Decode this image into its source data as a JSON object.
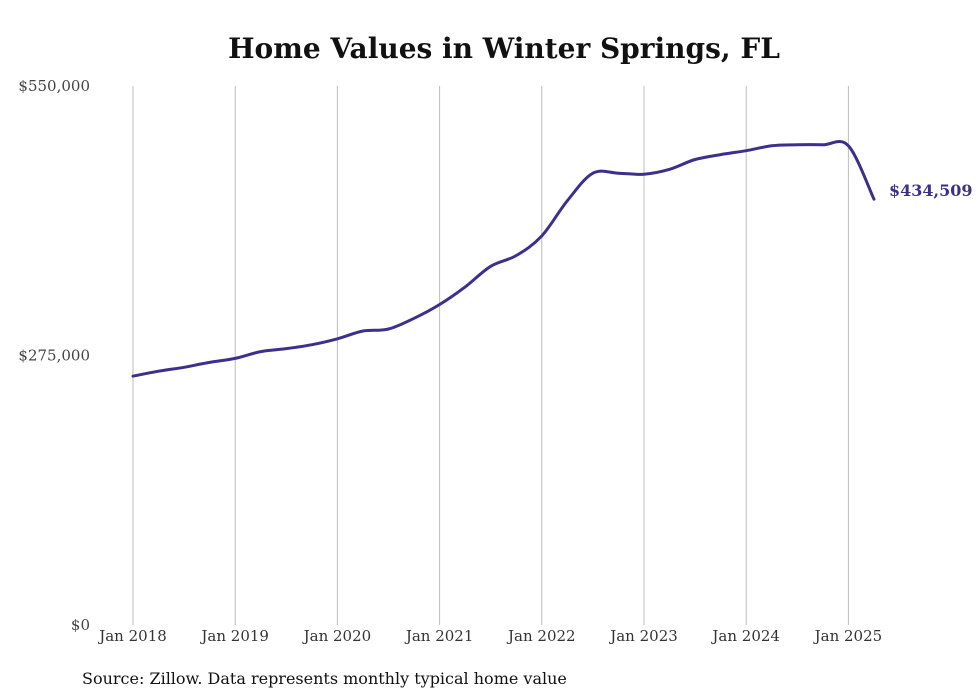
{
  "chart_data": {
    "type": "line",
    "title": "Home Values in Winter Springs, FL",
    "xlabel": "",
    "ylabel": "",
    "ylim": [
      0,
      550000
    ],
    "y_ticks": [
      0,
      275000,
      550000
    ],
    "y_tick_labels": [
      "$0",
      "$275,000",
      "$550,000"
    ],
    "x_ticks": [
      "2018-01",
      "2019-01",
      "2020-01",
      "2021-01",
      "2022-01",
      "2023-01",
      "2024-01",
      "2025-01"
    ],
    "x_tick_labels": [
      "Jan 2018",
      "Jan 2019",
      "Jan 2020",
      "Jan 2021",
      "Jan 2022",
      "Jan 2023",
      "Jan 2024",
      "Jan 2025"
    ],
    "grid": "vertical",
    "line_color": "#3d2f8c",
    "end_label": "$434,509",
    "series": [
      {
        "x": [
          "2018-01",
          "2018-04",
          "2018-07",
          "2018-10",
          "2019-01",
          "2019-04",
          "2019-07",
          "2019-10",
          "2020-01",
          "2020-04",
          "2020-07",
          "2020-10",
          "2021-01",
          "2021-04",
          "2021-07",
          "2021-10",
          "2022-01",
          "2022-04",
          "2022-07",
          "2022-10",
          "2023-01",
          "2023-04",
          "2023-07",
          "2023-10",
          "2024-01",
          "2024-04",
          "2024-07",
          "2024-10",
          "2025-01",
          "2025-04"
        ],
        "values": [
          254000,
          259000,
          263000,
          268000,
          272000,
          279000,
          282000,
          286000,
          292000,
          300000,
          302000,
          313000,
          327000,
          345000,
          366000,
          377000,
          397000,
          433000,
          461000,
          461000,
          460000,
          465000,
          475000,
          480000,
          484000,
          489000,
          490000,
          490000,
          489000,
          434509
        ]
      }
    ]
  },
  "source_note": "Source: Zillow. Data represents monthly typical home value"
}
